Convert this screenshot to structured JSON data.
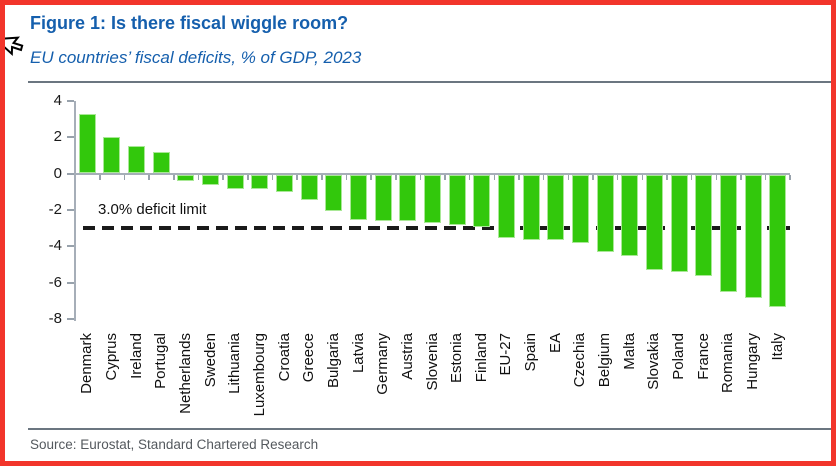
{
  "figure": {
    "title": "Figure 1: Is there fiscal wiggle room?",
    "subtitle": "EU countries’ fiscal deficits, % of GDP, 2023",
    "source": "Source: Eurostat, Standard Chartered Research"
  },
  "colors": {
    "accent_blue": "#155FAD",
    "bar_green": "#32C80C",
    "frame_red": "#F2352B",
    "axis_gray": "#A6AEB8",
    "dash_black": "#1A1A1A",
    "source_gray": "#54595E"
  },
  "chart_data": {
    "type": "bar",
    "title": "Figure 1: Is there fiscal wiggle room?",
    "subtitle": "EU countries’ fiscal deficits, % of GDP, 2023",
    "xlabel": "",
    "ylabel": "% of GDP",
    "ylim": [
      -8,
      4
    ],
    "yticks": [
      4,
      2,
      0,
      -2,
      -4,
      -6,
      -8
    ],
    "grid": false,
    "legend": "none",
    "bar_color": "#32C80C",
    "categories": [
      "Denmark",
      "Cyprus",
      "Ireland",
      "Portugal",
      "Netherlands",
      "Sweden",
      "Lithuania",
      "Luxembourg",
      "Croatia",
      "Greece",
      "Bulgaria",
      "Latvia",
      "Germany",
      "Austria",
      "Slovenia",
      "Estonia",
      "Finland",
      "EU-27",
      "Spain",
      "EA",
      "Czechia",
      "Belgium",
      "Malta",
      "Slovakia",
      "Poland",
      "France",
      "Romania",
      "Hungary",
      "Italy"
    ],
    "values": [
      3.3,
      2.0,
      1.5,
      1.2,
      -0.4,
      -0.6,
      -0.8,
      -0.8,
      -1.0,
      -1.4,
      -2.0,
      -2.5,
      -2.6,
      -2.6,
      -2.7,
      -2.8,
      -2.9,
      -3.5,
      -3.6,
      -3.6,
      -3.8,
      -4.3,
      -4.5,
      -5.3,
      -5.4,
      -5.6,
      -6.5,
      -6.8,
      -7.3
    ],
    "reference_line": {
      "value": -3.0,
      "label": "3.0% deficit limit",
      "style": "dashed"
    }
  }
}
